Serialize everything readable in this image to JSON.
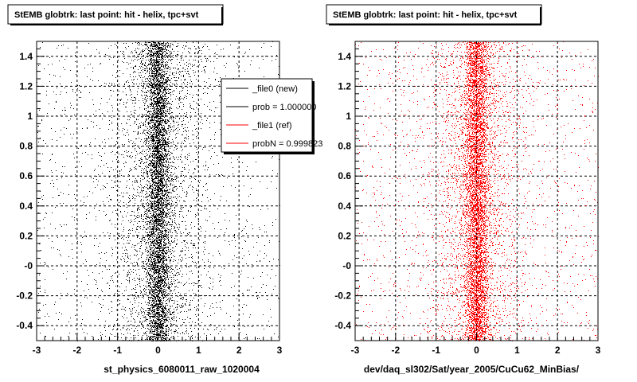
{
  "chart_data": [
    {
      "type": "scatter",
      "title": "StEMB globtrk: last point: hit - helix, tpc+svt",
      "xlabel": "st_physics_6080011_raw_1020004",
      "ylabel": "",
      "xlim": [
        -3,
        3
      ],
      "ylim": [
        -0.5,
        1.5
      ],
      "x_ticks": [
        "-3",
        "-2",
        "-1",
        "0",
        "1",
        "2",
        "3"
      ],
      "y_ticks": [
        "-0.4",
        "-0.2",
        "-0",
        "0.2",
        "0.4",
        "0.6",
        "0.8",
        "1",
        "1.2",
        "1.4"
      ],
      "grid": true,
      "marker_color": "#000000",
      "distribution": {
        "x_center": 0.0,
        "core_width": 0.15,
        "halo_width": 0.6,
        "background": "uniform",
        "y_range": [
          -0.5,
          1.5
        ]
      },
      "legend": {
        "placement": "top-right",
        "entries": [
          {
            "label": "_file0 (new)",
            "color": "#000000"
          },
          {
            "label": "prob = 1.000000",
            "color": "#000000"
          },
          {
            "label": "_file1 (ref)",
            "color": "#ff0000"
          },
          {
            "label": "probN = 0.999823",
            "color": "#ff0000"
          }
        ]
      }
    },
    {
      "type": "scatter",
      "title": "StEMB globtrk: last point: hit - helix, tpc+svt",
      "xlabel": "dev/daq_sl302/Sat/year_2005/CuCu62_MinBias/",
      "ylabel": "",
      "xlim": [
        -3,
        3
      ],
      "ylim": [
        -0.5,
        1.5
      ],
      "x_ticks": [
        "-3",
        "-2",
        "-1",
        "0",
        "1",
        "2",
        "3"
      ],
      "y_ticks": [
        "-0.4",
        "-0.2",
        "-0",
        "0.2",
        "0.4",
        "0.6",
        "0.8",
        "1",
        "1.2",
        "1.4"
      ],
      "grid": true,
      "marker_color": "#ff0000",
      "distribution": {
        "x_center": 0.0,
        "core_width": 0.15,
        "halo_width": 0.6,
        "background": "uniform",
        "y_range": [
          -0.5,
          1.5
        ]
      }
    }
  ]
}
